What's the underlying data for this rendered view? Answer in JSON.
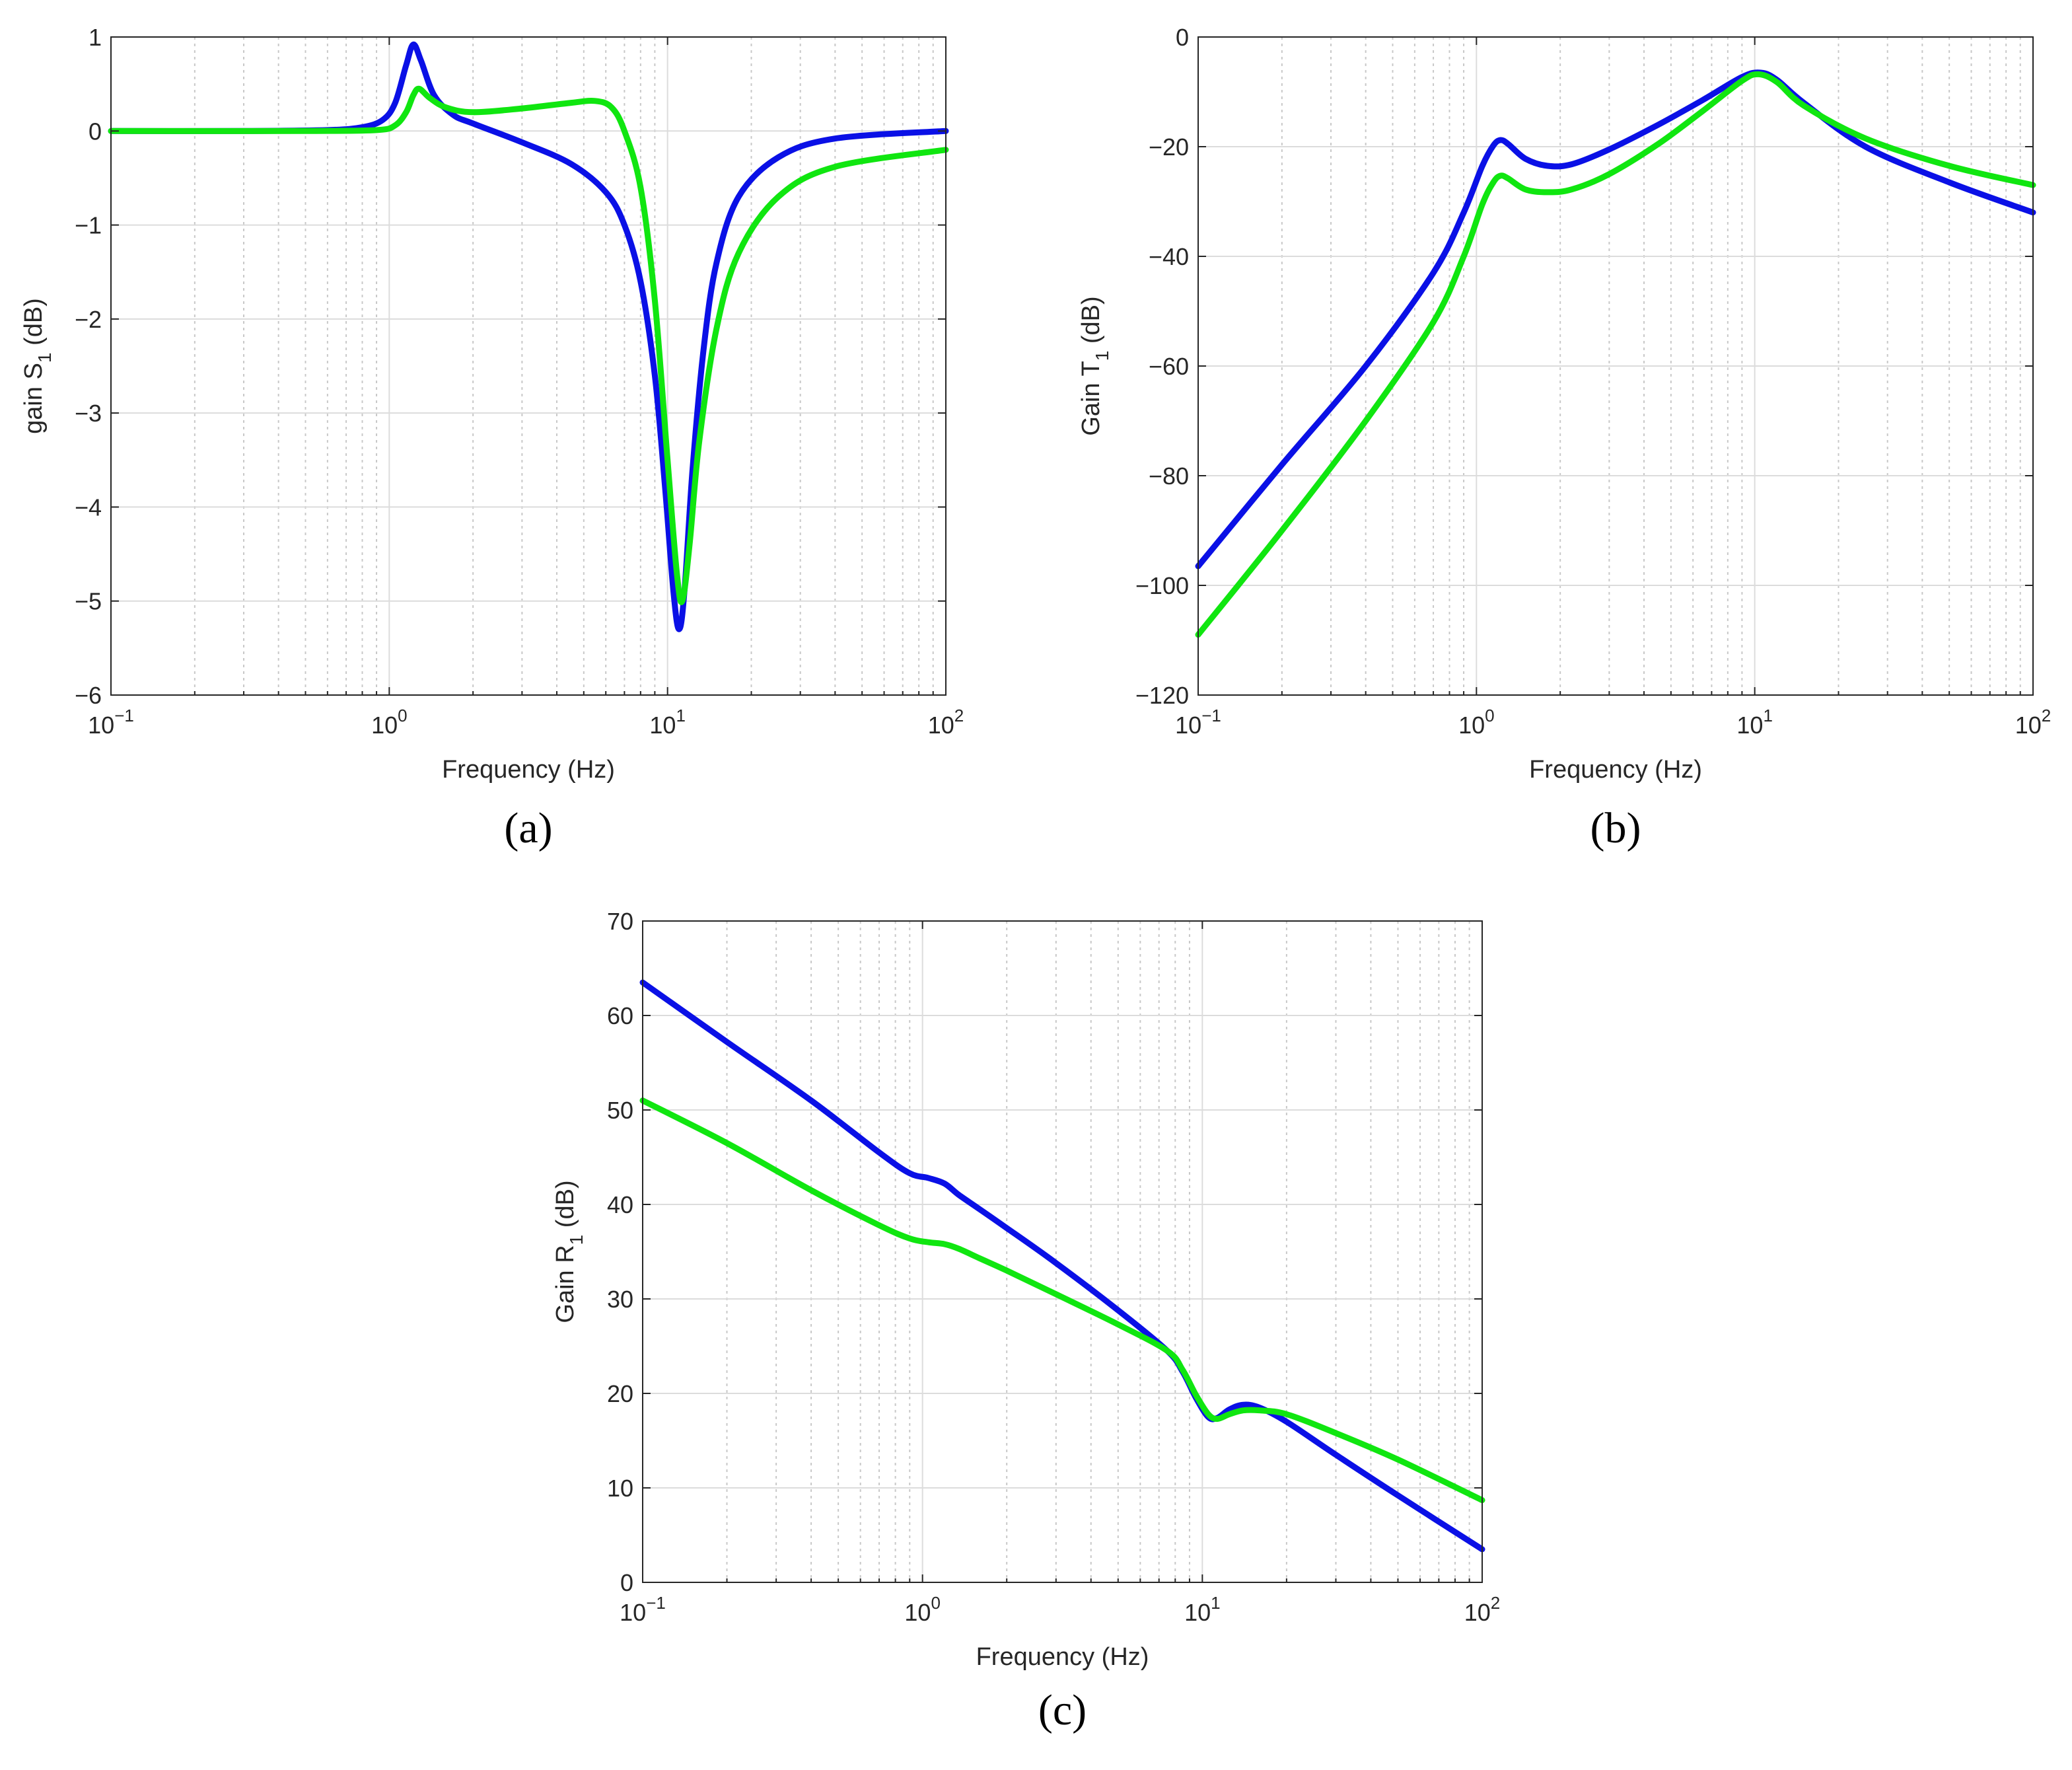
{
  "chart_data": [
    {
      "id": "a",
      "type": "line",
      "panel_label": "(a)",
      "xscale": "log",
      "xlim": [
        0.1,
        100
      ],
      "ylim": [
        -6,
        1
      ],
      "xlabel": "Frequency (Hz)",
      "ylabel": {
        "prefix": "gain S",
        "sub": "1",
        "suffix": " (dB)"
      },
      "yticks": [
        1,
        0,
        -1,
        -2,
        -3,
        -4,
        -5,
        -6
      ],
      "ytick_labels": [
        "1",
        "0",
        "−1",
        "−2",
        "−3",
        "−4",
        "−5",
        "−6"
      ],
      "xticks": [
        {
          "base": "10",
          "exp": "−1"
        },
        {
          "base": "10",
          "exp": "0"
        },
        {
          "base": "10",
          "exp": "1"
        },
        {
          "base": "10",
          "exp": "2"
        }
      ],
      "grid": true,
      "series": [
        {
          "name": "blue",
          "color": "#0a10e6",
          "x": [
            0.1,
            0.3,
            0.6,
            0.8,
            0.95,
            1.05,
            1.15,
            1.22,
            1.3,
            1.45,
            1.7,
            2.0,
            3.0,
            4.5,
            6.0,
            7.0,
            8.0,
            9.0,
            9.8,
            10.5,
            11.0,
            11.5,
            12.3,
            13.5,
            15.0,
            18.0,
            25.0,
            40.0,
            100.0
          ],
          "y": [
            0,
            0,
            0.01,
            0.04,
            0.12,
            0.3,
            0.7,
            0.92,
            0.75,
            0.38,
            0.17,
            0.08,
            -0.12,
            -0.35,
            -0.65,
            -1.0,
            -1.6,
            -2.6,
            -3.8,
            -4.9,
            -5.3,
            -4.9,
            -3.6,
            -2.3,
            -1.4,
            -0.7,
            -0.28,
            -0.08,
            0
          ]
        },
        {
          "name": "green",
          "color": "#10e610",
          "x": [
            0.1,
            0.5,
            0.9,
            1.05,
            1.15,
            1.22,
            1.28,
            1.4,
            1.6,
            2.0,
            3.0,
            4.5,
            5.5,
            6.3,
            7.0,
            8.0,
            9.0,
            10.0,
            10.8,
            11.3,
            12.0,
            13.0,
            15.0,
            18.0,
            25.0,
            40.0,
            100.0
          ],
          "y": [
            0,
            0,
            0.01,
            0.06,
            0.2,
            0.38,
            0.45,
            0.35,
            0.25,
            0.2,
            0.24,
            0.3,
            0.32,
            0.25,
            0.0,
            -0.6,
            -1.8,
            -3.5,
            -4.7,
            -5.0,
            -4.4,
            -3.3,
            -2.1,
            -1.3,
            -0.7,
            -0.38,
            -0.2
          ]
        }
      ]
    },
    {
      "id": "b",
      "type": "line",
      "panel_label": "(b)",
      "xscale": "log",
      "xlim": [
        0.1,
        100
      ],
      "ylim": [
        -120,
        0
      ],
      "xlabel": "Frequency (Hz)",
      "ylabel": {
        "prefix": "Gain T",
        "sub": "1",
        "suffix": "  (dB)"
      },
      "yticks": [
        0,
        -20,
        -40,
        -60,
        -80,
        -100,
        -120
      ],
      "ytick_labels": [
        "0",
        "−20",
        "−40",
        "−60",
        "−80",
        "−100",
        "−120"
      ],
      "xticks": [
        {
          "base": "10",
          "exp": "−1"
        },
        {
          "base": "10",
          "exp": "0"
        },
        {
          "base": "10",
          "exp": "1"
        },
        {
          "base": "10",
          "exp": "2"
        }
      ],
      "grid": true,
      "series": [
        {
          "name": "blue",
          "color": "#0a10e6",
          "x": [
            0.1,
            0.2,
            0.4,
            0.7,
            0.9,
            1.05,
            1.15,
            1.22,
            1.3,
            1.5,
            1.8,
            2.2,
            3.0,
            4.5,
            6.5,
            9.0,
            10.5,
            12.0,
            15.0,
            25.0,
            50.0,
            100.0
          ],
          "y": [
            -96.5,
            -78,
            -60,
            -43,
            -32,
            -23.5,
            -19.8,
            -18.8,
            -19.5,
            -22.2,
            -23.5,
            -23.2,
            -20.5,
            -16,
            -11.5,
            -7.3,
            -6.5,
            -7.8,
            -12,
            -20,
            -26.5,
            -32
          ]
        },
        {
          "name": "green",
          "color": "#10e610",
          "x": [
            0.1,
            0.2,
            0.4,
            0.7,
            0.9,
            1.05,
            1.15,
            1.22,
            1.3,
            1.5,
            1.8,
            2.2,
            3.0,
            4.5,
            6.5,
            9.0,
            10.3,
            12.0,
            15.0,
            25.0,
            50.0,
            100.0
          ],
          "y": [
            -109,
            -90,
            -70,
            -52,
            -40,
            -30.5,
            -26.5,
            -25.3,
            -25.8,
            -27.8,
            -28.3,
            -27.8,
            -25,
            -19.5,
            -13.5,
            -8,
            -6.8,
            -8.2,
            -12.5,
            -18.5,
            -23.5,
            -27
          ]
        }
      ]
    },
    {
      "id": "c",
      "type": "line",
      "panel_label": "(c)",
      "xscale": "log",
      "xlim": [
        0.1,
        100
      ],
      "ylim": [
        0,
        70
      ],
      "xlabel": "Frequency (Hz)",
      "ylabel": {
        "prefix": "Gain R",
        "sub": "1",
        "suffix": " (dB)"
      },
      "yticks": [
        70,
        60,
        50,
        40,
        30,
        20,
        10,
        0
      ],
      "ytick_labels": [
        "70",
        "60",
        "50",
        "40",
        "30",
        "20",
        "10",
        "0"
      ],
      "xticks": [
        {
          "base": "10",
          "exp": "−1"
        },
        {
          "base": "10",
          "exp": "0"
        },
        {
          "base": "10",
          "exp": "1"
        },
        {
          "base": "10",
          "exp": "2"
        }
      ],
      "grid": true,
      "series": [
        {
          "name": "blue",
          "color": "#0a10e6",
          "x": [
            0.1,
            0.2,
            0.4,
            0.7,
            0.9,
            1.05,
            1.2,
            1.35,
            1.6,
            2.0,
            3.0,
            5.0,
            7.5,
            8.5,
            9.5,
            10.5,
            11.3,
            12.5,
            14.0,
            16.0,
            20.0,
            30.0,
            50.0,
            100.0
          ],
          "y": [
            63.5,
            57.2,
            51,
            45.5,
            43.3,
            42.8,
            42.2,
            41.0,
            39.5,
            37.5,
            33.8,
            28.8,
            24.5,
            22.3,
            19.5,
            17.5,
            17.4,
            18.3,
            18.8,
            18.5,
            17.0,
            13.5,
            9.2,
            3.5
          ]
        },
        {
          "name": "green",
          "color": "#10e610",
          "x": [
            0.1,
            0.2,
            0.4,
            0.7,
            0.9,
            1.05,
            1.2,
            1.35,
            1.6,
            2.0,
            3.0,
            5.0,
            7.5,
            8.5,
            9.5,
            10.5,
            11.3,
            12.5,
            14.0,
            16.0,
            20.0,
            30.0,
            50.0,
            100.0
          ],
          "y": [
            51,
            46.5,
            41.5,
            37.8,
            36.4,
            36.0,
            35.8,
            35.3,
            34.3,
            33.0,
            30.5,
            27.3,
            24.5,
            22.5,
            19.8,
            17.8,
            17.3,
            17.8,
            18.2,
            18.2,
            17.8,
            15.8,
            13.0,
            8.7
          ]
        }
      ]
    }
  ]
}
